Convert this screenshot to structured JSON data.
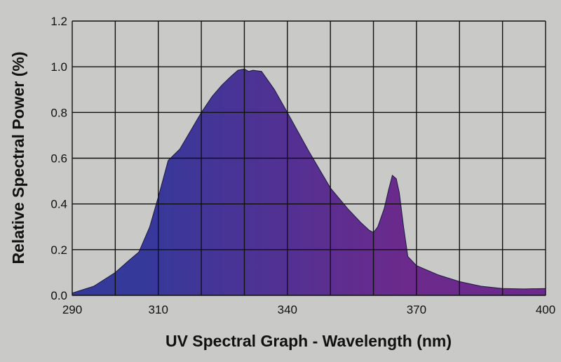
{
  "chart_data": {
    "type": "area",
    "title": "",
    "xlabel": "UV Spectral Graph - Wavelength (nm)",
    "ylabel": "Relative Spectral Power (%)",
    "xlim": [
      290,
      400
    ],
    "ylim": [
      0,
      1.2
    ],
    "grid": true,
    "x_grid_step": 10,
    "y_grid_step": 0.2,
    "x_tick_labels": [
      "290",
      "310",
      "340",
      "370",
      "400"
    ],
    "x_tick_values": [
      290,
      310,
      340,
      370,
      400
    ],
    "y_tick_labels": [
      "0.0",
      "0.2",
      "0.4",
      "0.6",
      "0.8",
      "1.0",
      "1.2"
    ],
    "y_tick_values": [
      0,
      0.2,
      0.4,
      0.6,
      0.8,
      1.0,
      1.2
    ],
    "fill_colors": [
      "#35399a",
      "#6b2a8c"
    ],
    "series": [
      {
        "name": "Relative Spectral Power",
        "x": [
          290,
          295,
          300,
          303,
          305.5,
          308,
          310,
          312.3,
          315,
          317.5,
          320,
          322.5,
          324.8,
          327,
          328.5,
          330,
          331,
          332,
          334,
          337,
          340,
          345,
          350,
          354,
          357,
          359,
          360,
          361,
          362.5,
          363.5,
          364.4,
          365.3,
          366,
          367,
          368,
          370,
          375,
          380,
          385,
          390,
          395,
          400
        ],
        "y": [
          0.01,
          0.04,
          0.1,
          0.15,
          0.19,
          0.3,
          0.43,
          0.59,
          0.64,
          0.72,
          0.8,
          0.87,
          0.92,
          0.96,
          0.985,
          0.99,
          0.98,
          0.985,
          0.98,
          0.9,
          0.8,
          0.63,
          0.47,
          0.38,
          0.32,
          0.285,
          0.275,
          0.3,
          0.38,
          0.46,
          0.525,
          0.51,
          0.45,
          0.3,
          0.17,
          0.13,
          0.09,
          0.06,
          0.04,
          0.03,
          0.028,
          0.03
        ]
      }
    ]
  }
}
